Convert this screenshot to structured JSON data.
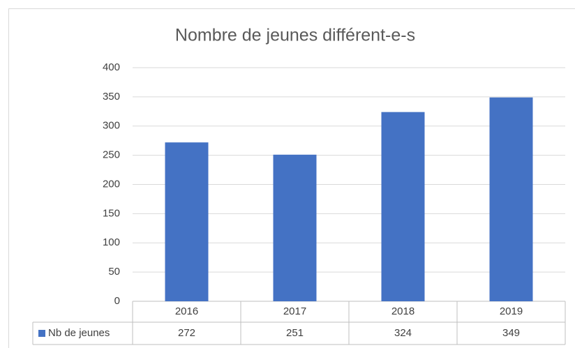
{
  "chart_data": {
    "type": "bar",
    "title": "Nombre de jeunes différent-e-s",
    "categories": [
      "2016",
      "2017",
      "2018",
      "2019"
    ],
    "series": [
      {
        "name": "Nb de jeunes",
        "color": "#4472c4",
        "values": [
          272,
          251,
          324,
          349
        ]
      }
    ],
    "ylim": [
      0,
      400
    ],
    "yticks": [
      0,
      50,
      100,
      150,
      200,
      250,
      300,
      350,
      400
    ],
    "grid": true
  }
}
